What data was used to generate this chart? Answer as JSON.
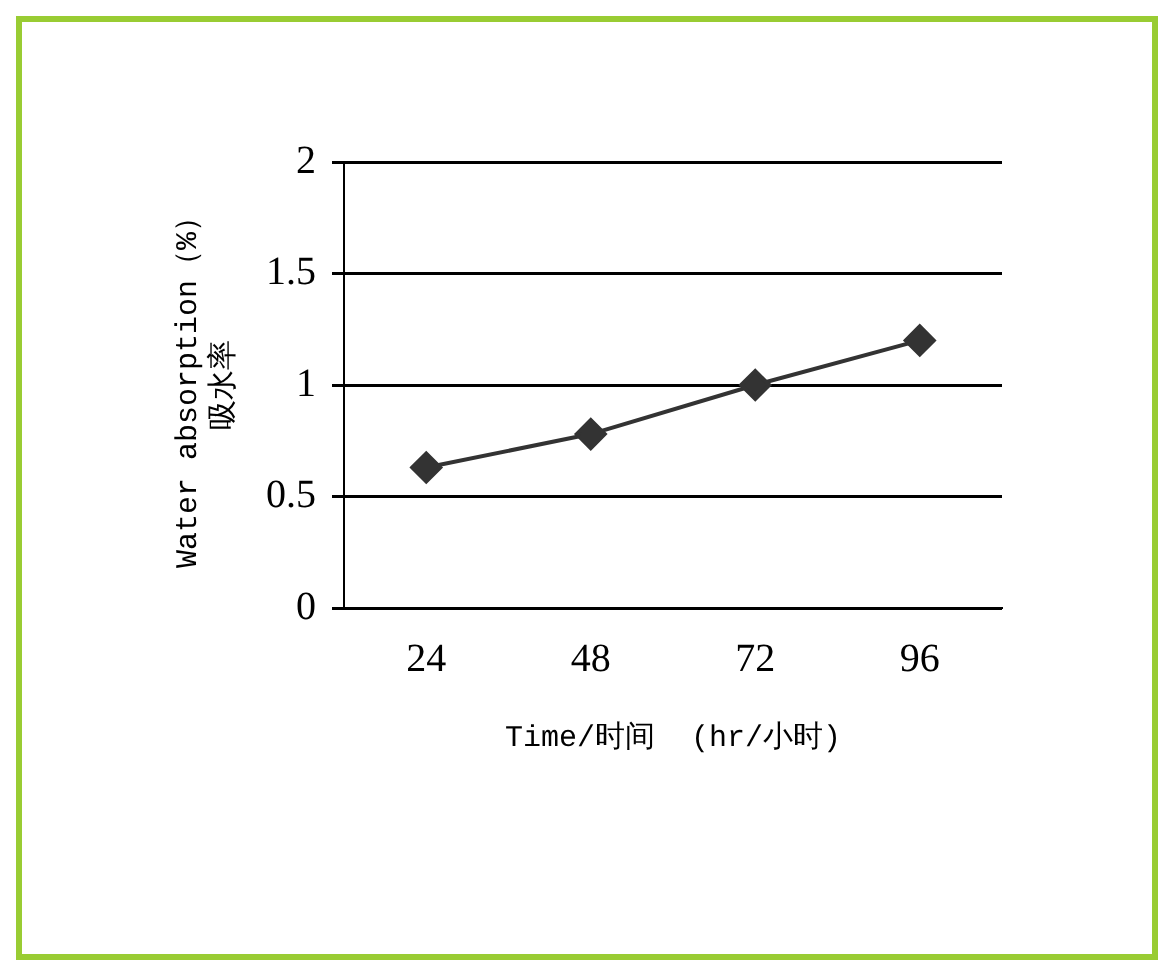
{
  "chart_data": {
    "type": "line",
    "categories": [
      "24",
      "48",
      "72",
      "96"
    ],
    "series": [
      {
        "color": "#333333",
        "values": [
          0.63,
          0.78,
          1.0,
          1.2
        ]
      }
    ],
    "xlabel": "Time/时间  (hr/小时)",
    "ylabel": "Water absorption（%）吸水率",
    "ylim": [
      0,
      2
    ],
    "yticks": [
      0,
      0.5,
      1,
      1.5,
      2
    ],
    "grid": "y",
    "legend": false,
    "marker": "diamond",
    "line_style": "solid"
  }
}
